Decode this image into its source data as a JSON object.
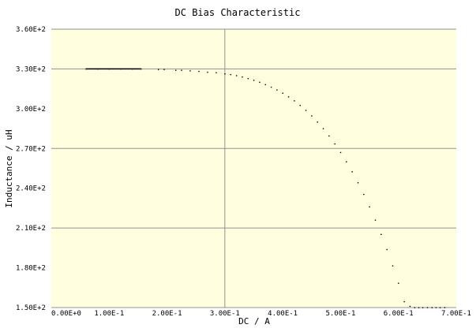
{
  "chart_data": {
    "type": "scatter",
    "title": "DC Bias Characteristic",
    "xlabel": "DC / A",
    "ylabel": "Inductance / uH",
    "xlim": [
      0,
      0.7
    ],
    "ylim": [
      150,
      360
    ],
    "grid": true,
    "plot_background": "#ffffe0",
    "grid_color": "#909090",
    "series_color": "#000000",
    "x_ticks": [
      0,
      0.1,
      0.2,
      0.3,
      0.4,
      0.5,
      0.6,
      0.7
    ],
    "x_tick_labels": [
      "0.00E+0",
      "1.00E-1",
      "2.00E-1",
      "3.00E-1",
      "4.00E-1",
      "5.00E-1",
      "6.00E-1",
      "7.00E-1"
    ],
    "y_ticks": [
      150,
      180,
      210,
      240,
      270,
      300,
      330,
      360
    ],
    "y_tick_labels": [
      "1.50E+2",
      "1.80E+2",
      "2.10E+2",
      "2.40E+2",
      "2.70E+2",
      "3.00E+2",
      "3.30E+2",
      "3.60E+2"
    ],
    "grid_x": [
      0.3
    ],
    "grid_y": [
      210,
      270,
      330
    ],
    "series": [
      {
        "x": [
          0.06,
          0.08,
          0.1,
          0.12,
          0.14,
          0.155,
          0.185,
          0.195,
          0.215,
          0.225,
          0.24,
          0.255,
          0.27,
          0.285,
          0.3,
          0.31,
          0.32,
          0.33,
          0.34,
          0.35,
          0.36,
          0.37,
          0.38,
          0.39,
          0.4,
          0.41,
          0.42,
          0.43,
          0.44,
          0.45,
          0.46,
          0.47,
          0.48,
          0.49,
          0.5,
          0.51,
          0.52,
          0.53,
          0.54,
          0.55,
          0.56,
          0.57,
          0.58,
          0.59,
          0.6,
          0.61,
          0.62,
          0.628,
          0.635,
          0.642,
          0.65,
          0.658,
          0.665,
          0.672,
          0.68
        ],
        "y": [
          330,
          330,
          330,
          330,
          330,
          330,
          329.6,
          329.6,
          329,
          329,
          328.6,
          328.2,
          327.6,
          327.2,
          326.3,
          325.8,
          325,
          324,
          322.8,
          321.5,
          320,
          318.2,
          316.3,
          314.2,
          311.7,
          309,
          306,
          302.5,
          298.8,
          294.6,
          290,
          285,
          279.5,
          273.5,
          267,
          260,
          252.5,
          244.2,
          235.4,
          226,
          216,
          205.2,
          193.8,
          181.5,
          168.4,
          154.5,
          151,
          150,
          150,
          150,
          150,
          150,
          150,
          150,
          150
        ]
      }
    ]
  }
}
